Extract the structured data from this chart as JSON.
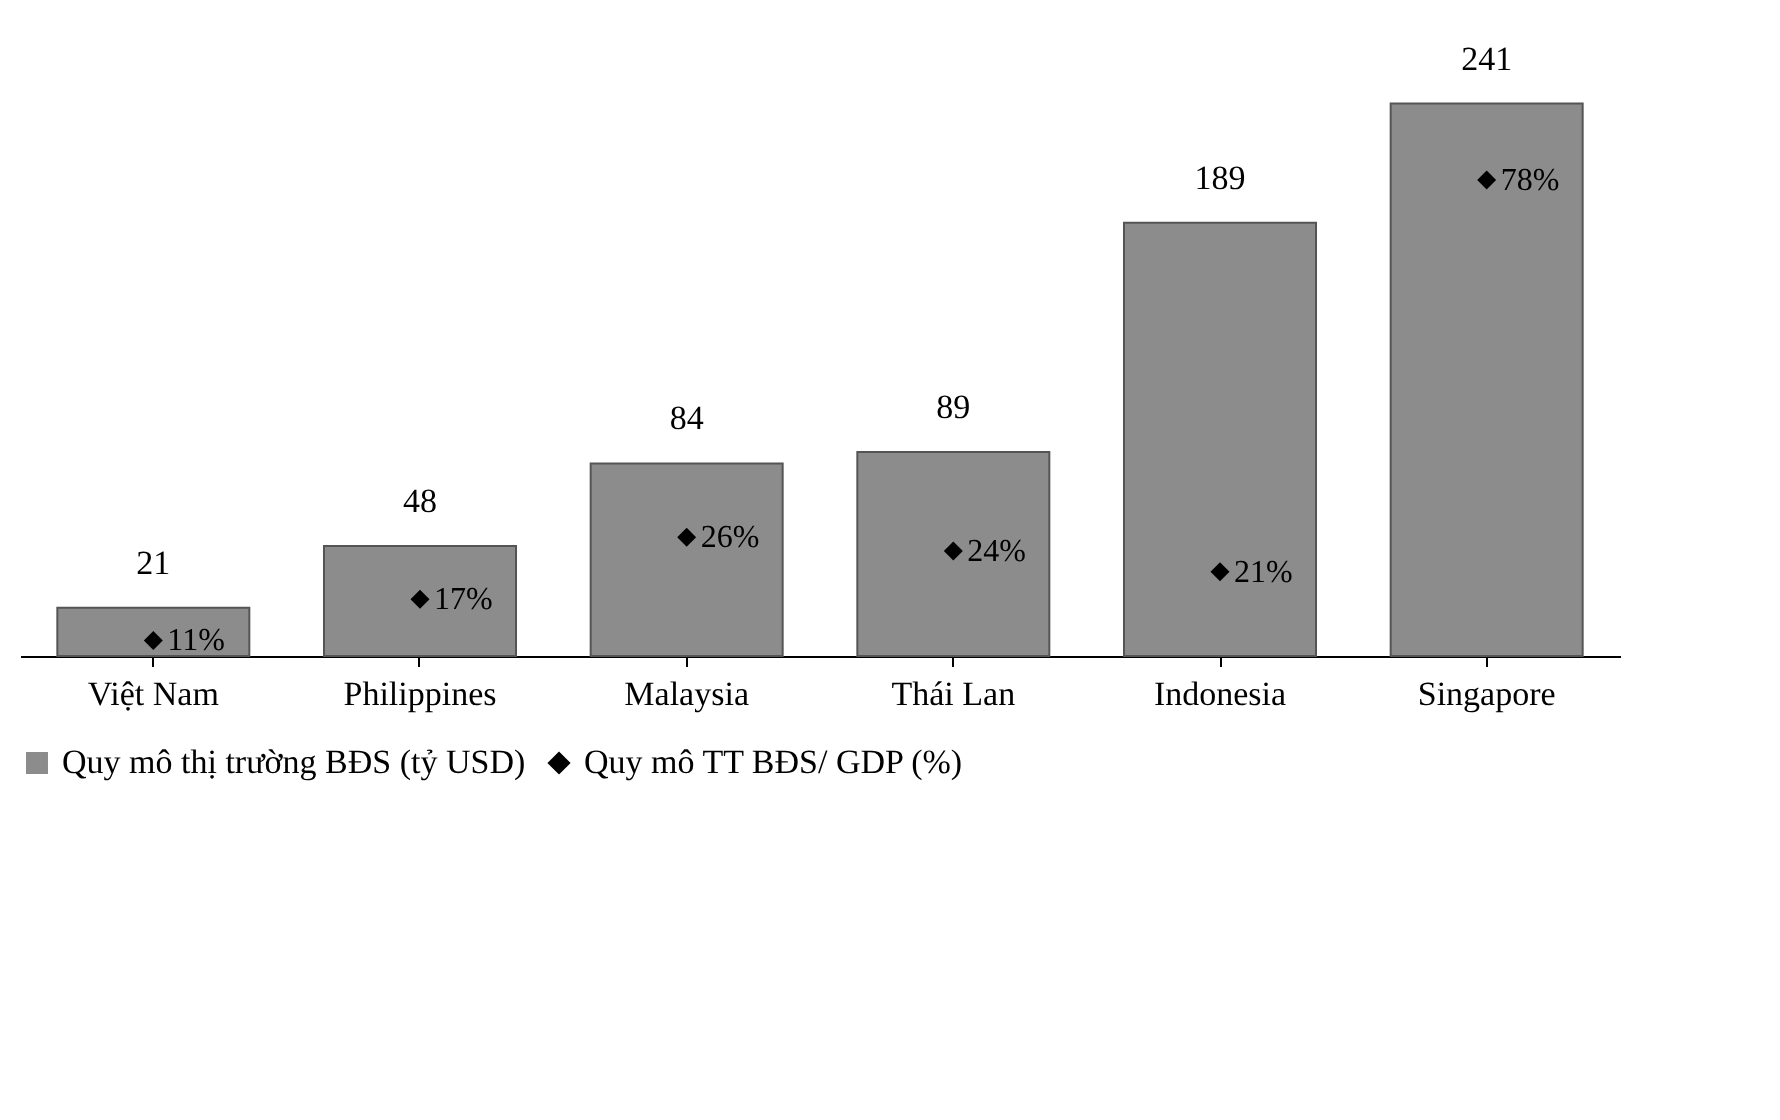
{
  "chart_data": {
    "type": "bar",
    "categories": [
      "Việt Nam",
      "Philippines",
      "Malaysia",
      "Thái Lan",
      "Indonesia",
      "Singapore"
    ],
    "series": [
      {
        "name": "Quy mô thị trường BĐS (tỷ USD)",
        "color": "#8c8c8c",
        "values": [
          21,
          48,
          84,
          89,
          189,
          241
        ]
      },
      {
        "name": "Quy mô TT BĐS/ GDP (%)",
        "type": "scatter",
        "axis": "y2",
        "color": "#000000",
        "marker": "diamond",
        "values": [
          11,
          17,
          26,
          24,
          21,
          78
        ],
        "value_labels": [
          "11%",
          "17%",
          "26%",
          "24%",
          "21%",
          "78%"
        ]
      }
    ],
    "data_labels": true,
    "tick_labels": "x",
    "grid": false,
    "legend": "bottom"
  }
}
